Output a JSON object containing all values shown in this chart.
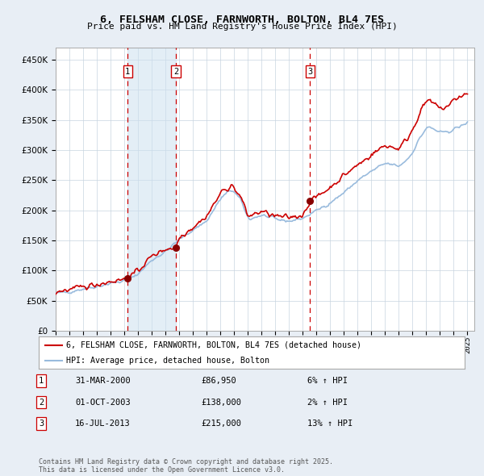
{
  "title_line1": "6, FELSHAM CLOSE, FARNWORTH, BOLTON, BL4 7ES",
  "title_line2": "Price paid vs. HM Land Registry's House Price Index (HPI)",
  "background_color": "#e8eef5",
  "plot_bg_color": "#ffffff",
  "sale_color": "#cc0000",
  "hpi_color": "#99bbdd",
  "sale_marker_color": "#880000",
  "sale_label": "6, FELSHAM CLOSE, FARNWORTH, BOLTON, BL4 7ES (detached house)",
  "hpi_label": "HPI: Average price, detached house, Bolton",
  "sales": [
    {
      "date_num": 2000.25,
      "price": 86950,
      "label": "1"
    },
    {
      "date_num": 2003.75,
      "price": 138000,
      "label": "2"
    },
    {
      "date_num": 2013.54,
      "price": 215000,
      "label": "3"
    }
  ],
  "table_rows": [
    {
      "num": "1",
      "date": "31-MAR-2000",
      "price": "£86,950",
      "pct": "6% ↑ HPI"
    },
    {
      "num": "2",
      "date": "01-OCT-2003",
      "price": "£138,000",
      "pct": "2% ↑ HPI"
    },
    {
      "num": "3",
      "date": "16-JUL-2013",
      "price": "£215,000",
      "pct": "13% ↑ HPI"
    }
  ],
  "footer": "Contains HM Land Registry data © Crown copyright and database right 2025.\nThis data is licensed under the Open Government Licence v3.0.",
  "ylim": [
    0,
    470000
  ],
  "yticks": [
    0,
    50000,
    100000,
    150000,
    200000,
    250000,
    300000,
    350000,
    400000,
    450000
  ],
  "xlim": [
    1995,
    2025.5
  ]
}
